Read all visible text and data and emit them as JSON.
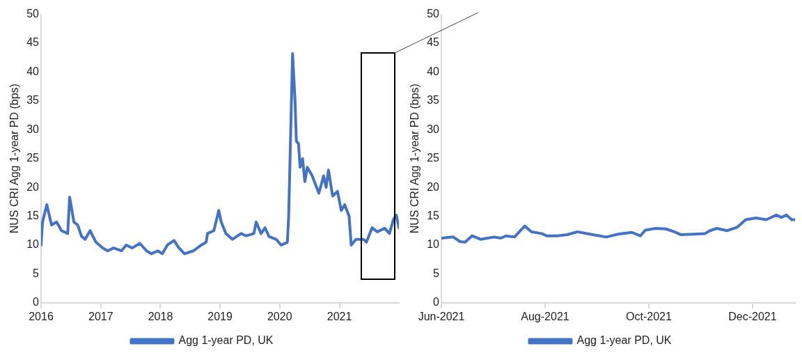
{
  "chart_data": [
    {
      "type": "line",
      "ylabel": "NUS CRI Agg 1-year PD (bps)",
      "x": [
        "2016-01-01",
        "2016-01-10",
        "2016-02-05",
        "2016-03-05",
        "2016-04-05",
        "2016-05-05",
        "2016-06-12",
        "2016-06-24",
        "2016-07-20",
        "2016-08-12",
        "2016-09-05",
        "2016-09-27",
        "2016-10-27",
        "2016-12-02",
        "2017-01-12",
        "2017-02-12",
        "2017-03-20",
        "2017-05-07",
        "2017-06-05",
        "2017-07-12",
        "2017-08-28",
        "2017-10-08",
        "2017-11-06",
        "2017-12-16",
        "2018-01-12",
        "2018-02-12",
        "2018-03-25",
        "2018-04-22",
        "2018-05-28",
        "2018-07-22",
        "2018-09-08",
        "2018-10-08",
        "2018-10-16",
        "2018-11-24",
        "2018-12-24",
        "2019-01-08",
        "2019-02-06",
        "2019-03-18",
        "2019-05-10",
        "2019-06-10",
        "2019-07-27",
        "2019-08-10",
        "2019-09-09",
        "2019-10-03",
        "2019-10-27",
        "2019-12-10",
        "2020-01-10",
        "2020-02-17",
        "2020-02-25",
        "2020-03-20",
        "2020-04-04",
        "2020-04-12",
        "2020-04-25",
        "2020-05-05",
        "2020-05-20",
        "2020-06-03",
        "2020-06-18",
        "2020-07-18",
        "2020-08-28",
        "2020-09-26",
        "2020-10-11",
        "2020-10-26",
        "2020-11-20",
        "2020-12-20",
        "2021-01-12",
        "2021-02-02",
        "2021-03-01",
        "2021-03-14",
        "2021-04-12",
        "2021-05-28",
        "2021-06-15",
        "2021-07-20",
        "2021-08-20",
        "2021-10-05",
        "2021-11-03",
        "2021-11-27",
        "2021-12-15",
        "2021-12-31"
      ],
      "series": [
        {
          "name": "Agg 1-year PD, UK",
          "color": "#4472c4",
          "values": [
            10,
            14,
            17,
            13.5,
            14,
            12.5,
            12,
            18.3,
            14,
            13.5,
            11.5,
            11,
            12.5,
            10.5,
            9.5,
            9,
            9.5,
            9,
            10,
            9.5,
            10.3,
            9,
            8.5,
            9,
            8.5,
            10,
            10.8,
            9.6,
            8.5,
            9,
            10,
            10.5,
            12,
            12.5,
            16,
            14,
            12,
            11,
            12,
            11.6,
            12,
            14,
            12,
            13,
            11.5,
            11,
            10,
            10.5,
            15,
            43.2,
            35,
            28,
            27.6,
            23.5,
            25,
            21,
            23.5,
            22,
            19,
            22,
            20,
            23,
            18.5,
            19.3,
            16,
            17,
            15,
            10,
            11,
            11,
            10.5,
            13,
            12.3,
            12.9,
            12,
            14.4,
            15.2,
            13
          ]
        }
      ],
      "xlim": [
        "2016-01-01",
        "2021-12-31"
      ],
      "xticks": [
        "2016",
        "2017",
        "2018",
        "2019",
        "2020",
        "2021"
      ],
      "ylim": [
        0,
        50
      ],
      "yticks": [
        0,
        5,
        10,
        15,
        20,
        25,
        30,
        35,
        40,
        45,
        50
      ],
      "grid": false,
      "legend": "bottom",
      "line_style": "solid"
    },
    {
      "type": "line",
      "ylabel": "NUS CRI Agg 1-year PD (bps)",
      "x": [
        "2021-06-01",
        "2021-06-08",
        "2021-06-12",
        "2021-06-15",
        "2021-06-19",
        "2021-06-24",
        "2021-07-02",
        "2021-07-06",
        "2021-07-09",
        "2021-07-14",
        "2021-07-20",
        "2021-07-24",
        "2021-07-30",
        "2021-08-02",
        "2021-08-08",
        "2021-08-14",
        "2021-08-20",
        "2021-08-29",
        "2021-09-06",
        "2021-09-13",
        "2021-09-21",
        "2021-09-26",
        "2021-09-29",
        "2021-10-05",
        "2021-10-11",
        "2021-10-16",
        "2021-10-20",
        "2021-10-28",
        "2021-11-03",
        "2021-11-06",
        "2021-11-10",
        "2021-11-16",
        "2021-11-22",
        "2021-11-27",
        "2021-12-03",
        "2021-12-09",
        "2021-12-15",
        "2021-12-18",
        "2021-12-21",
        "2021-12-24",
        "2021-12-26"
      ],
      "series": [
        {
          "name": "Agg 1-year PD, UK",
          "color": "#4472c4",
          "values": [
            11.2,
            11.4,
            10.6,
            10.5,
            11.6,
            11,
            11.4,
            11.2,
            11.6,
            11.4,
            13.3,
            12.3,
            12,
            11.6,
            11.6,
            11.8,
            12.3,
            11.8,
            11.4,
            11.9,
            12.2,
            11.6,
            12.6,
            12.9,
            12.8,
            12.3,
            11.8,
            11.9,
            12,
            12.5,
            12.9,
            12.5,
            13.1,
            14.4,
            14.7,
            14.4,
            15.2,
            14.8,
            15.2,
            14.4,
            14.4
          ]
        }
      ],
      "xlim": [
        "2021-06-01",
        "2021-12-26"
      ],
      "xticks": [
        {
          "value": "2021-06-01",
          "label": "Jun-2021"
        },
        {
          "value": "2021-08-01",
          "label": "Aug-2021"
        },
        {
          "value": "2021-10-01",
          "label": "Oct-2021"
        },
        {
          "value": "2021-12-01",
          "label": "Dec-2021"
        }
      ],
      "ylim": [
        0,
        50
      ],
      "yticks": [
        0,
        5,
        10,
        15,
        20,
        25,
        30,
        35,
        40,
        45,
        50
      ],
      "grid": false,
      "legend": "bottom",
      "line_style": "solid"
    }
  ]
}
